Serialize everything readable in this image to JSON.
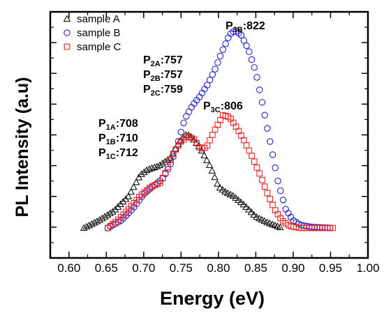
{
  "chart_data": {
    "type": "scatter",
    "xlabel": "Energy (eV)",
    "ylabel": "PL Intensity (a.u)",
    "xlim": [
      0.575,
      1.0
    ],
    "ylim": [
      0,
      1.18
    ],
    "x_ticks": [
      "0.60",
      "0.65",
      "0.70",
      "0.75",
      "0.80",
      "0.85",
      "0.90",
      "0.95",
      "1.00"
    ],
    "y_tick_count": 8,
    "y_tick_labels_shown": false,
    "legend_position": "top-left",
    "series": [
      {
        "name": "sample A",
        "marker": "triangle",
        "color": "#000000",
        "points": [
          [
            0.62,
            0.0
          ],
          [
            0.64,
            0.04
          ],
          [
            0.66,
            0.09
          ],
          [
            0.68,
            0.17
          ],
          [
            0.695,
            0.28
          ],
          [
            0.705,
            0.31
          ],
          [
            0.72,
            0.33
          ],
          [
            0.735,
            0.37
          ],
          [
            0.745,
            0.44
          ],
          [
            0.752,
            0.48
          ],
          [
            0.758,
            0.5
          ],
          [
            0.765,
            0.48
          ],
          [
            0.775,
            0.43
          ],
          [
            0.79,
            0.32
          ],
          [
            0.8,
            0.22
          ],
          [
            0.81,
            0.19
          ],
          [
            0.82,
            0.17
          ],
          [
            0.835,
            0.12
          ],
          [
            0.85,
            0.06
          ],
          [
            0.865,
            0.03
          ],
          [
            0.885,
            0.0
          ]
        ]
      },
      {
        "name": "sample B",
        "marker": "circle",
        "color": "#2222cc",
        "points": [
          [
            0.652,
            0.0
          ],
          [
            0.67,
            0.04
          ],
          [
            0.685,
            0.1
          ],
          [
            0.7,
            0.18
          ],
          [
            0.715,
            0.23
          ],
          [
            0.725,
            0.26
          ],
          [
            0.735,
            0.33
          ],
          [
            0.745,
            0.44
          ],
          [
            0.755,
            0.58
          ],
          [
            0.765,
            0.65
          ],
          [
            0.775,
            0.7
          ],
          [
            0.785,
            0.76
          ],
          [
            0.795,
            0.84
          ],
          [
            0.805,
            0.94
          ],
          [
            0.815,
            1.03
          ],
          [
            0.822,
            1.05
          ],
          [
            0.83,
            1.03
          ],
          [
            0.84,
            0.95
          ],
          [
            0.85,
            0.83
          ],
          [
            0.86,
            0.64
          ],
          [
            0.87,
            0.44
          ],
          [
            0.88,
            0.24
          ],
          [
            0.89,
            0.1
          ],
          [
            0.9,
            0.04
          ],
          [
            0.91,
            0.015
          ],
          [
            0.925,
            0.005
          ],
          [
            0.95,
            0.0
          ]
        ]
      },
      {
        "name": "sample C",
        "marker": "square",
        "color": "#ee2222",
        "points": [
          [
            0.652,
            0.0
          ],
          [
            0.665,
            0.04
          ],
          [
            0.68,
            0.1
          ],
          [
            0.695,
            0.17
          ],
          [
            0.71,
            0.22
          ],
          [
            0.722,
            0.24
          ],
          [
            0.73,
            0.3
          ],
          [
            0.74,
            0.4
          ],
          [
            0.75,
            0.46
          ],
          [
            0.759,
            0.49
          ],
          [
            0.768,
            0.47
          ],
          [
            0.776,
            0.42
          ],
          [
            0.784,
            0.43
          ],
          [
            0.795,
            0.52
          ],
          [
            0.806,
            0.6
          ],
          [
            0.815,
            0.59
          ],
          [
            0.825,
            0.53
          ],
          [
            0.835,
            0.46
          ],
          [
            0.845,
            0.38
          ],
          [
            0.855,
            0.29
          ],
          [
            0.865,
            0.19
          ],
          [
            0.875,
            0.1
          ],
          [
            0.885,
            0.04
          ],
          [
            0.895,
            0.01
          ],
          [
            0.91,
            0.0
          ],
          [
            0.955,
            0.0
          ]
        ]
      }
    ],
    "annotations": [
      {
        "label": "P",
        "sub": "1A",
        "value": ":708"
      },
      {
        "label": "P",
        "sub": "1B",
        "value": ":710"
      },
      {
        "label": "P",
        "sub": "1C",
        "value": ":712"
      },
      {
        "label": "P",
        "sub": "2A",
        "value": ":757"
      },
      {
        "label": "P",
        "sub": "2B",
        "value": ":757"
      },
      {
        "label": "P",
        "sub": "2C",
        "value": ":759"
      },
      {
        "label": "P",
        "sub": "3C",
        "value": ":806"
      },
      {
        "label": "P",
        "sub": "3B",
        "value": ":822"
      }
    ]
  }
}
